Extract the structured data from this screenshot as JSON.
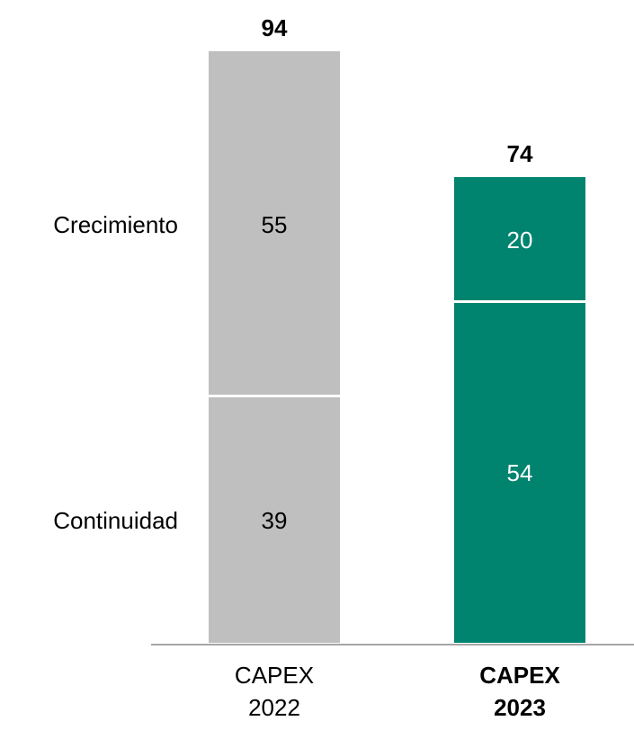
{
  "chart_data": {
    "type": "stacked_bar",
    "categories": [
      "CAPEX 2022",
      "CAPEX 2023"
    ],
    "series": [
      {
        "name": "Continuidad",
        "values": [
          39,
          54
        ]
      },
      {
        "name": "Crecimiento",
        "values": [
          55,
          20
        ]
      }
    ],
    "totals": [
      94,
      74
    ],
    "colors": [
      "#bfbfbf",
      "#00846f"
    ],
    "label_colors": [
      "#000000",
      "#ffffff"
    ],
    "highlight": 1,
    "ylim": [
      0,
      100
    ]
  }
}
